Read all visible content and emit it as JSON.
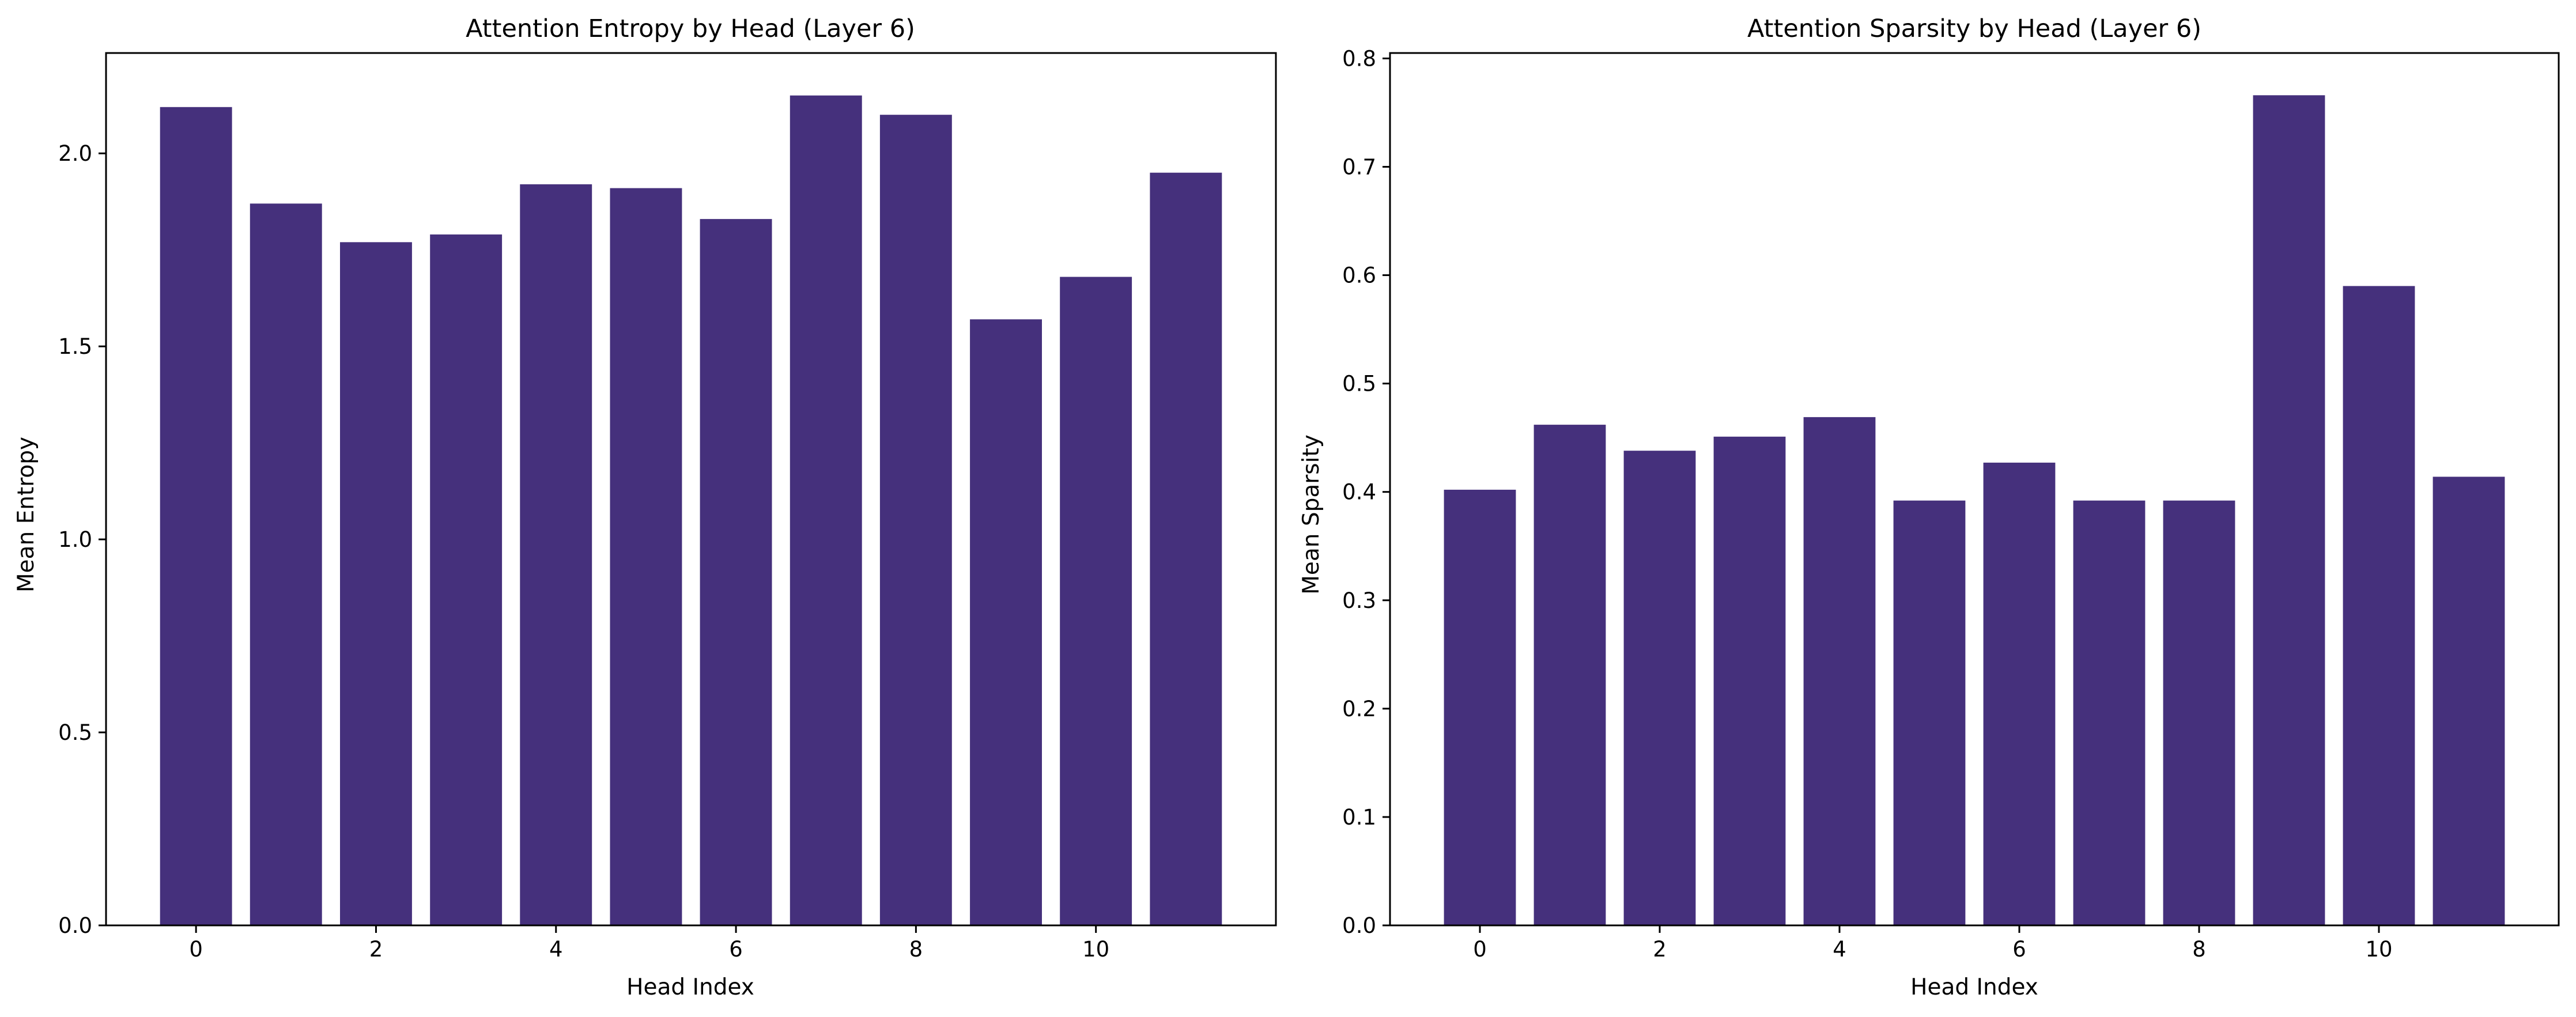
{
  "colors": {
    "bar": "#45307c",
    "axis": "#000000",
    "background": "#ffffff"
  },
  "chart_data": [
    {
      "type": "bar",
      "title": "Attention Entropy by Head (Layer 6)",
      "xlabel": "Head Index",
      "ylabel": "Mean Entropy",
      "categories": [
        0,
        1,
        2,
        3,
        4,
        5,
        6,
        7,
        8,
        9,
        10,
        11
      ],
      "values": [
        2.12,
        1.87,
        1.77,
        1.79,
        1.92,
        1.91,
        1.83,
        2.15,
        2.1,
        1.57,
        1.68,
        1.95
      ],
      "xlim": [
        -1,
        12
      ],
      "ylim": [
        0,
        2.26
      ],
      "xticks": [
        0,
        2,
        4,
        6,
        8,
        10
      ],
      "xtick_labels": [
        "0",
        "2",
        "4",
        "6",
        "8",
        "10"
      ],
      "yticks": [
        0,
        0.5,
        1.0,
        1.5,
        2.0
      ],
      "ytick_labels": [
        "0.0",
        "0.5",
        "1.0",
        "1.5",
        "2.0"
      ],
      "grid": false,
      "legend": "none"
    },
    {
      "type": "bar",
      "title": "Attention Sparsity by Head (Layer 6)",
      "xlabel": "Head Index",
      "ylabel": "Mean Sparsity",
      "categories": [
        0,
        1,
        2,
        3,
        4,
        5,
        6,
        7,
        8,
        9,
        10,
        11
      ],
      "values": [
        0.402,
        0.462,
        0.438,
        0.451,
        0.469,
        0.392,
        0.427,
        0.392,
        0.392,
        0.766,
        0.59,
        0.414
      ],
      "xlim": [
        -1,
        12
      ],
      "ylim": [
        0,
        0.805
      ],
      "xticks": [
        0,
        2,
        4,
        6,
        8,
        10
      ],
      "xtick_labels": [
        "0",
        "2",
        "4",
        "6",
        "8",
        "10"
      ],
      "yticks": [
        0,
        0.1,
        0.2,
        0.3,
        0.4,
        0.5,
        0.6,
        0.7,
        0.8
      ],
      "ytick_labels": [
        "0.0",
        "0.1",
        "0.2",
        "0.3",
        "0.4",
        "0.5",
        "0.6",
        "0.7",
        "0.8"
      ],
      "grid": false,
      "legend": "none"
    }
  ]
}
